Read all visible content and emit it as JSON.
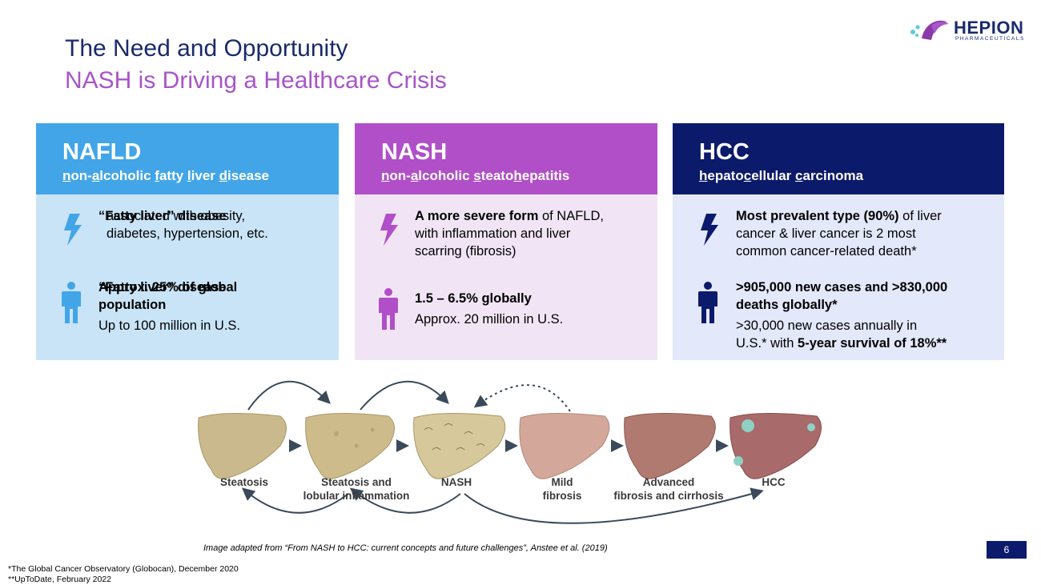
{
  "header": {
    "title": "The Need and Opportunity",
    "subtitle": "NASH is Driving a Healthcare Crisis"
  },
  "logo": {
    "name": "HEPION",
    "sub": "PHARMACEUTICALS"
  },
  "columns": [
    {
      "heading": "NAFLD",
      "expansion": [
        "n",
        "on-",
        "a",
        "lcoholic ",
        "f",
        "atty ",
        "l",
        "iver ",
        "d",
        "isease"
      ],
      "point1": {
        "bold": "“Fatty liver” disease",
        "line2": "associated with obesity,",
        "line3": "diabetes, hypertension, etc."
      },
      "point2": {
        "bold_line1": "Approx. 25% of global",
        "bold_line2": "population",
        "normal": "Up to 100 million in U.S."
      },
      "icon_color": "#42a5e8"
    },
    {
      "heading": "NASH",
      "expansion": [
        "n",
        "on-",
        "a",
        "lcoholic ",
        "s",
        "teato",
        "h",
        "epatitis"
      ],
      "point1": {
        "bold": "A more severe form",
        "rest1": " of NAFLD,",
        "line2": "with inflammation and liver",
        "line3": "scarring (fibrosis)"
      },
      "point2": {
        "bold": "1.5 – 6.5% globally",
        "normal": "Approx. 20 million in U.S."
      },
      "icon_color": "#b04fc8"
    },
    {
      "heading": "HCC",
      "expansion": [
        "h",
        "epato",
        "c",
        "ellular ",
        "c",
        "arcinoma"
      ],
      "point1": {
        "bold": "Most prevalent type (90%)",
        "rest1": " of liver",
        "line2": "cancer & liver cancer is 2 most",
        "line3": "common cancer-related death*"
      },
      "point2": {
        "bold_line1": ">905,000 new cases and >830,000",
        "bold_line2": "deaths globally*",
        "normal1": ">30,000 new cases annually in",
        "normal2a": "U.S.* with ",
        "normal2b": "5-year survival of 18%**"
      },
      "icon_color": "#0c1a6b"
    }
  ],
  "diagram": {
    "stages": [
      "Steatosis",
      "Steatosis and",
      "lobular inflammation",
      "NASH",
      "Mild",
      "fibrosis",
      "Advanced",
      "fibrosis and cirrhosis",
      "HCC"
    ]
  },
  "caption": "Image adapted from “From NASH to HCC: current concepts and future challenges”, Anstee et al. (2019)",
  "page_number": "6",
  "footnotes": [
    "*The Global Cancer Observatory (Globocan), December 2020",
    "**UpToDate, February 2022"
  ]
}
